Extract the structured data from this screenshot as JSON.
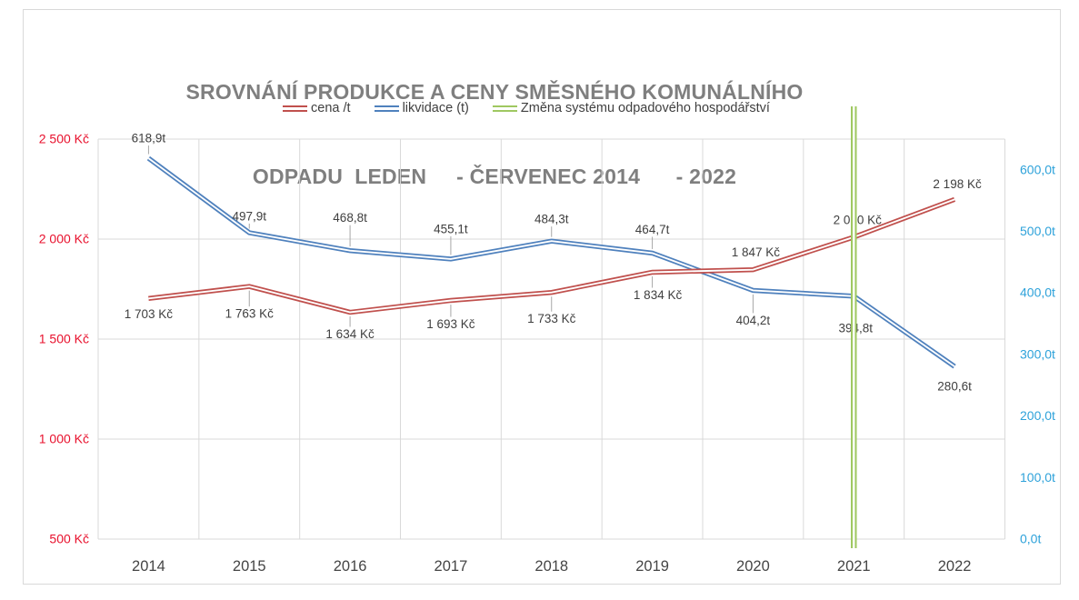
{
  "title": {
    "line1": "SROVNÁNÍ PRODUKCE A CENY SMĚSNÉHO KOMUNÁLNÍHO",
    "line2": "ODPADU  LEDEN     - ČERVENEC 2014      - 2022"
  },
  "legend": {
    "items": [
      {
        "label": "cena /t",
        "color": "#c0504d"
      },
      {
        "label": "likvidace (t)",
        "color": "#4f81bd"
      },
      {
        "label": "Změna systému odpadového hospodářství",
        "color": "#9fc861"
      }
    ]
  },
  "chart_data": {
    "type": "line",
    "title": "SROVNÁNÍ PRODUKCE A CENY SMĚSNÉHO KOMUNÁLNÍHO ODPADU LEDEN - ČERVENEC 2014 - 2022",
    "categories": [
      "2014",
      "2015",
      "2016",
      "2017",
      "2018",
      "2019",
      "2020",
      "2021",
      "2022"
    ],
    "grid": true,
    "grid_color": "#d9d9d9",
    "label_color": "#3f3f3f",
    "leader_color": "#a6a6a6",
    "x_axis": {
      "color": "#454545"
    },
    "left_axis": {
      "color": "#e8112d",
      "min": 500,
      "plot_top": 2500,
      "ticks": [
        {
          "v": 2500,
          "label": "2 500 Kč"
        },
        {
          "v": 2000,
          "label": "2 000 Kč"
        },
        {
          "v": 1500,
          "label": "1 500 Kč"
        },
        {
          "v": 1000,
          "label": "1 000 Kč"
        },
        {
          "v": 500,
          "label": "500 Kč"
        }
      ]
    },
    "right_axis": {
      "color": "#2ea2da",
      "min": 0,
      "plot_top": 650,
      "ticks": [
        {
          "v": 600,
          "label": "600,0t"
        },
        {
          "v": 500,
          "label": "500,0t"
        },
        {
          "v": 400,
          "label": "400,0t"
        },
        {
          "v": 300,
          "label": "300,0t"
        },
        {
          "v": 200,
          "label": "200,0t"
        },
        {
          "v": 100,
          "label": "100,0t"
        },
        {
          "v": 0,
          "label": "0,0t"
        }
      ]
    },
    "series": [
      {
        "name": "cena /t",
        "axis": "left",
        "color": "#c0504d",
        "values": [
          1703,
          1763,
          1634,
          1693,
          1733,
          1834,
          1847,
          2010,
          2198
        ],
        "labels": [
          "1 703 Kč",
          "1 763 Kč",
          "1 634 Kč",
          "1 693 Kč",
          "1 733 Kč",
          "1 834 Kč",
          "1 847 Kč",
          "2 010 Kč",
          "2 198 Kč"
        ],
        "label_dy": [
          17,
          30,
          24,
          26,
          29,
          25,
          -19,
          -19,
          -17
        ],
        "label_dx": [
          0,
          0,
          0,
          0,
          0,
          6,
          3,
          4,
          3
        ],
        "leader": [
          false,
          true,
          true,
          true,
          true,
          true,
          false,
          false,
          false
        ]
      },
      {
        "name": "likvidace (t)",
        "axis": "right",
        "color": "#4f81bd",
        "values": [
          618.9,
          497.9,
          468.8,
          455.1,
          484.3,
          464.7,
          404.2,
          394.8,
          280.6
        ],
        "labels": [
          "618,9t",
          "497,9t",
          "468,8t",
          "455,1t",
          "484,3t",
          "464,7t",
          "404,2t",
          "394,8t",
          "280,6t"
        ],
        "label_dy": [
          -22,
          -18,
          -36,
          -33,
          -24,
          -26,
          33,
          35,
          22
        ],
        "label_dx": [
          0,
          0,
          0,
          0,
          0,
          0,
          0,
          2,
          0
        ],
        "leader": [
          true,
          true,
          true,
          true,
          true,
          true,
          true,
          false,
          false
        ]
      }
    ],
    "annotation": {
      "label": "Změna systému odpadového hospodářství",
      "category": "2021",
      "color": "#9fc861"
    }
  }
}
